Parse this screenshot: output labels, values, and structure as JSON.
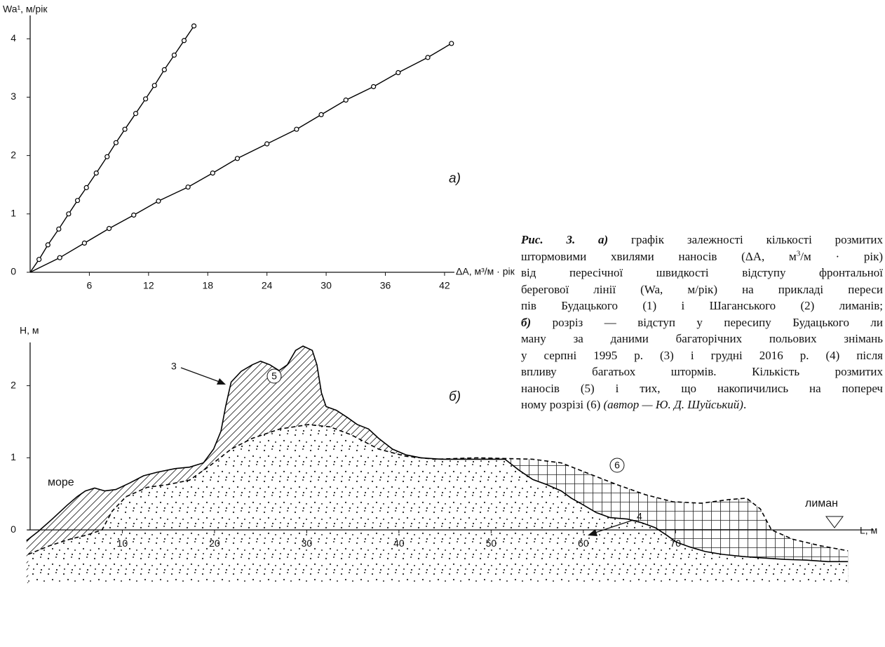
{
  "chart_data": [
    {
      "type": "line",
      "x_label": "ΔA, м³/м · рік",
      "y_label": "Wa¹, м/рік",
      "annotation": "а)",
      "xlim": [
        0,
        43
      ],
      "ylim": [
        0,
        4.4
      ],
      "xticks": [
        6,
        12,
        18,
        24,
        30,
        36,
        42
      ],
      "yticks": [
        0,
        1,
        2,
        3,
        4
      ],
      "series": [
        {
          "color": "#000000",
          "x": [
            0.9,
            1.8,
            2.9,
            3.9,
            4.8,
            5.7,
            6.7,
            7.8,
            8.7,
            9.6,
            10.7,
            11.7,
            12.6,
            13.6,
            14.6,
            15.6,
            16.6
          ],
          "values": [
            0.22,
            0.47,
            0.74,
            1.0,
            1.23,
            1.45,
            1.7,
            1.98,
            2.22,
            2.45,
            2.72,
            2.97,
            3.2,
            3.47,
            3.72,
            3.97,
            4.22
          ]
        },
        {
          "color": "#000000",
          "x": [
            3,
            5.5,
            8,
            10.5,
            13,
            16,
            18.5,
            21,
            24,
            27,
            29.5,
            32,
            34.8,
            37.3,
            40.3,
            42.7
          ],
          "values": [
            0.25,
            0.5,
            0.75,
            0.98,
            1.22,
            1.46,
            1.7,
            1.95,
            2.2,
            2.45,
            2.7,
            2.95,
            3.18,
            3.42,
            3.68,
            3.92
          ]
        }
      ]
    },
    {
      "type": "profile",
      "x_label": "L, м",
      "y_label": "Н, м",
      "annotation": "б)",
      "left_label": "море",
      "right_label": "лиман",
      "labels": [
        "3",
        "4",
        "5",
        "6"
      ],
      "xlim": [
        -0.3,
        91.5
      ],
      "ylim": [
        -0.7,
        2.6
      ],
      "xticks": [
        10,
        20,
        30,
        40,
        50,
        60,
        70
      ],
      "yticks": [
        0,
        1,
        2
      ],
      "series": [
        {
          "color": "#000000",
          "dashed": false,
          "x": [
            -0.4,
            0.9,
            2.4,
            4.0,
            5.1,
            6.0,
            7.0,
            8.1,
            9.3,
            10.8,
            12.3,
            13.8,
            15.7,
            17.3,
            18.8,
            19.9,
            20.7,
            21.2,
            21.8,
            22.9,
            24.1,
            25.0,
            26.0,
            27.0,
            27.9,
            28.8,
            29.6,
            30.6,
            31.1,
            31.6,
            32.1,
            33.2,
            34.4,
            35.5,
            36.7,
            37.8,
            39.3,
            40.8,
            42.4,
            44.6,
            46.9,
            50.0,
            51.5,
            53.0,
            54.5,
            56.0,
            57.6,
            58.7,
            59.8,
            61.4,
            62.9,
            64.8,
            66.3,
            67.8,
            69.0,
            70.1,
            71.6,
            73.2,
            75.1,
            77.3,
            79.6,
            81.9,
            84.2,
            86.5,
            88.7
          ],
          "values": [
            -0.15,
            -0.02,
            0.15,
            0.34,
            0.46,
            0.54,
            0.58,
            0.54,
            0.56,
            0.65,
            0.75,
            0.8,
            0.85,
            0.87,
            0.93,
            1.12,
            1.37,
            1.71,
            2.05,
            2.2,
            2.29,
            2.34,
            2.29,
            2.21,
            2.29,
            2.49,
            2.55,
            2.49,
            2.29,
            1.9,
            1.71,
            1.66,
            1.56,
            1.46,
            1.4,
            1.27,
            1.12,
            1.04,
            1.0,
            0.98,
            0.98,
            0.98,
            0.98,
            0.83,
            0.7,
            0.63,
            0.54,
            0.44,
            0.36,
            0.24,
            0.17,
            0.15,
            0.1,
            0.03,
            -0.07,
            -0.17,
            -0.24,
            -0.3,
            -0.34,
            -0.37,
            -0.39,
            -0.41,
            -0.42,
            -0.44,
            -0.44
          ]
        },
        {
          "color": "#000000",
          "dashed": true,
          "x": [
            -0.2,
            2.1,
            4.3,
            6.2,
            7.8,
            8.9,
            10.4,
            12.7,
            15.0,
            17.3,
            19.5,
            21.8,
            24.1,
            27.1,
            30.2,
            32.5,
            34.8,
            37.8,
            40.8,
            43.9,
            48.4,
            51.5,
            54.5,
            57.6,
            60.6,
            63.6,
            66.7,
            69.7,
            72.8,
            75.8,
            77.7,
            79.2,
            80.4,
            82.7,
            85.7,
            88.7
          ],
          "values": [
            -0.34,
            -0.22,
            -0.13,
            -0.07,
            0,
            0.26,
            0.46,
            0.59,
            0.63,
            0.69,
            0.89,
            1.12,
            1.27,
            1.4,
            1.46,
            1.43,
            1.32,
            1.12,
            1.02,
            0.98,
            1.0,
            0.99,
            0.98,
            0.93,
            0.78,
            0.63,
            0.49,
            0.39,
            0.37,
            0.42,
            0.44,
            0.29,
            0,
            -0.13,
            -0.22,
            -0.29
          ]
        }
      ]
    }
  ],
  "caption": {
    "lines": [
      [
        {
          "text": "Рис. 3. а)",
          "style": "bi"
        },
        " графік залежності кількості розмитих"
      ],
      [
        "штормовими хвилями наносів (ΔA, м",
        {
          "text": "3",
          "style": "sup"
        },
        "/м · рік)"
      ],
      [
        "від пересічної швидкості відступу фронтальної"
      ],
      [
        "берегової лінії (Wa, м/рік) на прикладі переси"
      ],
      [
        "пів Будацького (1) і Шаганського (2) лиманів;"
      ],
      [
        {
          "text": "б)",
          "style": "bi"
        },
        " розріз — відступ у пересипу Будацького ли"
      ],
      [
        "ману за даними багаторічних польових знімань"
      ],
      [
        "у серпні 1995 р. (3) і грудні 2016 р. (4) після"
      ],
      [
        "впливу багатьох штормів. Кількість розмитих"
      ],
      [
        "наносів (5) і тих, що накопичились на попереч"
      ],
      [
        "ному розрізі (6) ",
        {
          "text": "(автор — Ю. Д. Шуйський)",
          "style": "i"
        },
        "."
      ]
    ]
  }
}
